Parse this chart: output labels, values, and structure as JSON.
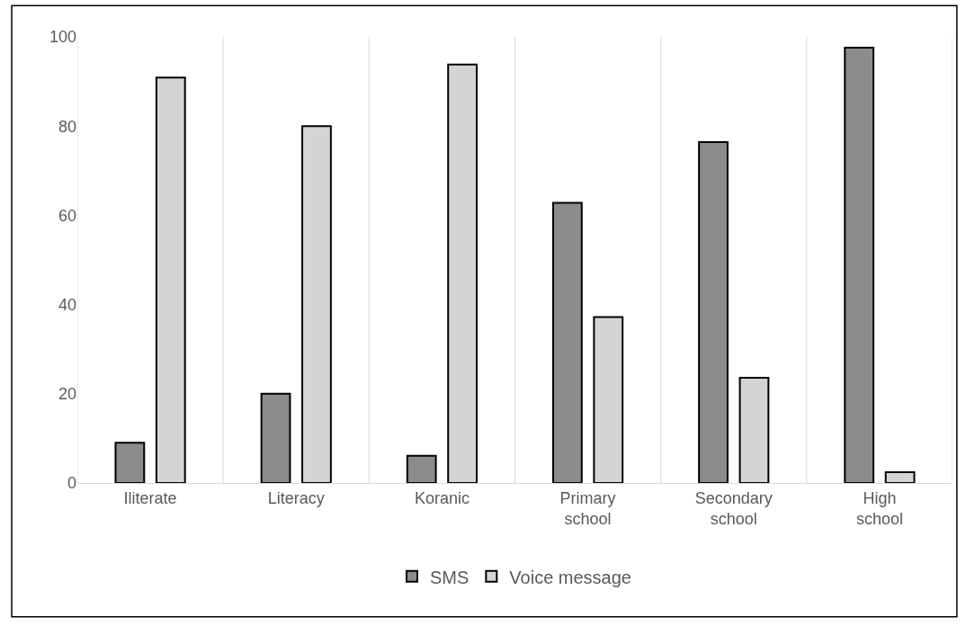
{
  "chart_data": {
    "type": "bar",
    "categories": [
      "Iliterate",
      "Literacy",
      "Koranic",
      "Primary school",
      "Secondary school",
      "High school"
    ],
    "series": [
      {
        "name": "SMS",
        "color": "#8c8c8c",
        "values": [
          9.0,
          20.0,
          6.1,
          62.8,
          76.4,
          97.6
        ]
      },
      {
        "name": "Voice message",
        "color": "#d4d4d4",
        "values": [
          90.9,
          80.0,
          93.8,
          37.2,
          23.6,
          2.4
        ]
      }
    ],
    "ylim": [
      0,
      100
    ],
    "yticks": [
      0,
      20,
      40,
      60,
      80,
      100
    ],
    "grid": "x",
    "legend": "bottom"
  }
}
